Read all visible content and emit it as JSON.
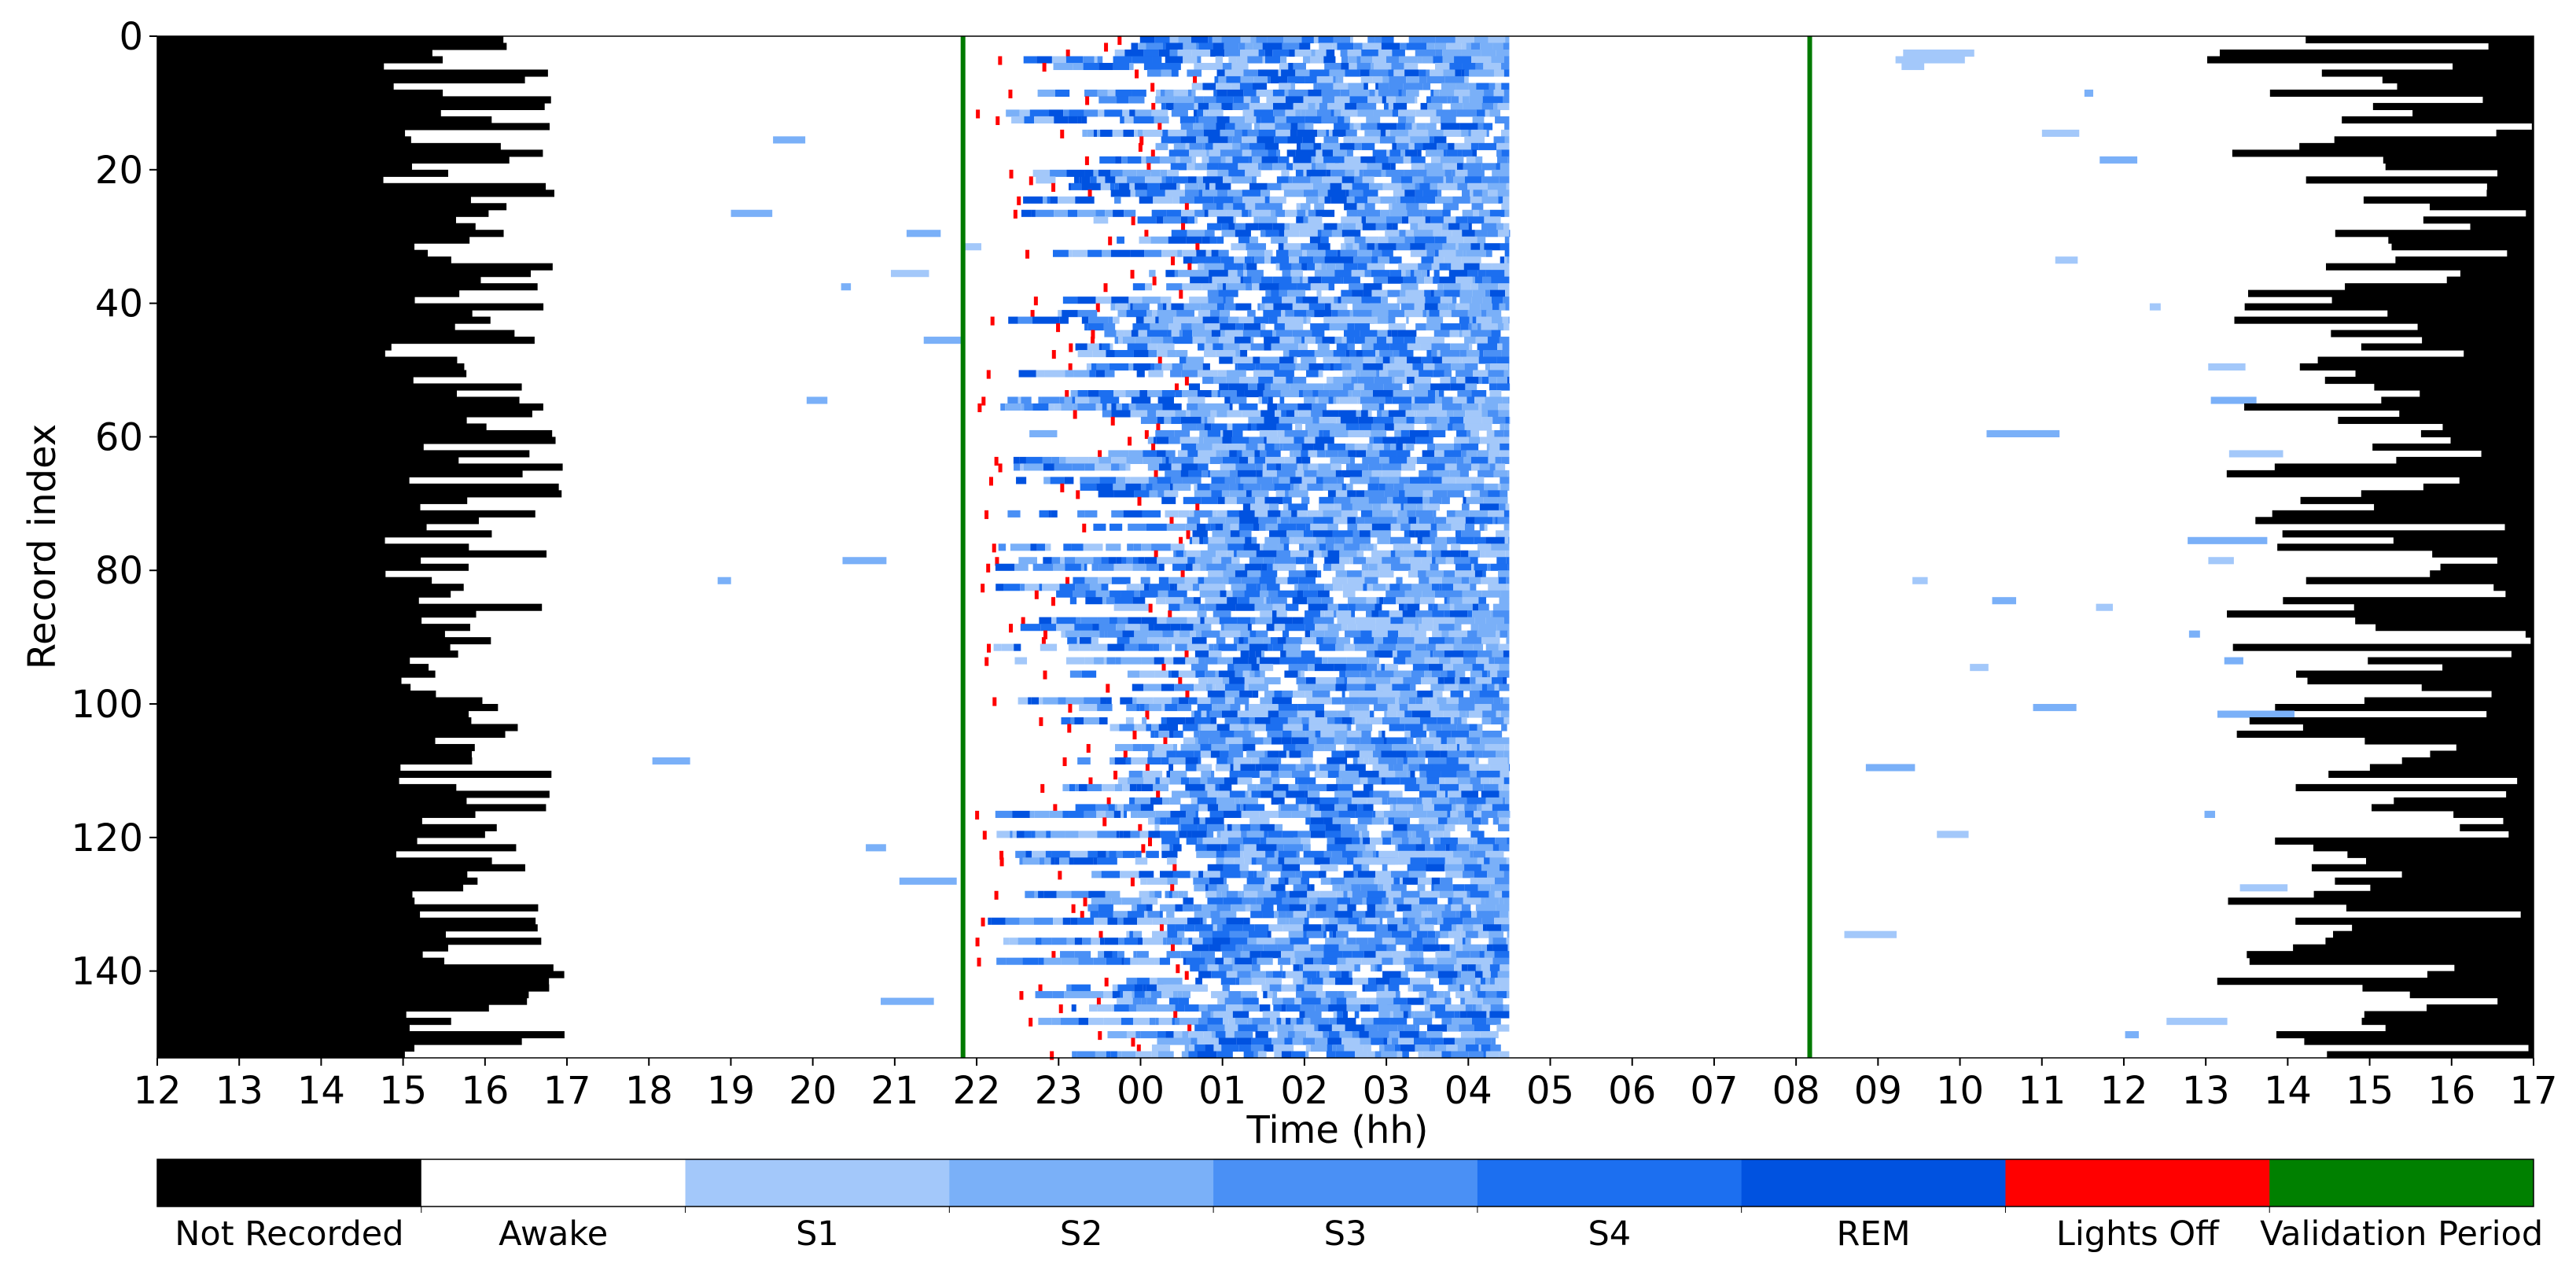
{
  "chart_data": {
    "type": "heatmap",
    "title": "",
    "xlabel": "Time (hh)",
    "ylabel": "Record index",
    "x_unit": "hour of day, starting 12:00 day 1",
    "xlim_hours": [
      0,
      29
    ],
    "x_ticks": [
      "12",
      "13",
      "14",
      "15",
      "16",
      "17",
      "18",
      "19",
      "20",
      "21",
      "22",
      "23",
      "00",
      "01",
      "02",
      "03",
      "04",
      "05",
      "06",
      "07",
      "08",
      "09",
      "10",
      "11",
      "12",
      "13",
      "14",
      "15",
      "16",
      "17"
    ],
    "ylim": [
      0,
      153
    ],
    "y_ticks": [
      0,
      20,
      40,
      60,
      80,
      100,
      120,
      140
    ],
    "n_records": 153,
    "validation_period": {
      "start": "21:50",
      "end": "08:10",
      "color": "#007a00"
    },
    "typical_lights_off": [
      "22:00",
      "00:45"
    ],
    "typical_recording_start": [
      "14:45",
      "17:00"
    ],
    "typical_recording_end": [
      "13:00",
      "17:00"
    ],
    "colorbar": {
      "categories": [
        "Not Recorded",
        "Awake",
        "S1",
        "S2",
        "S3",
        "S4",
        "REM",
        "Lights Off",
        "Validation Period"
      ],
      "colors": [
        "#000000",
        "#ffffff",
        "#a3c8fa",
        "#7ab0f8",
        "#4a90f5",
        "#1c6ff0",
        "#0052e0",
        "#ff0000",
        "#008000"
      ]
    }
  }
}
